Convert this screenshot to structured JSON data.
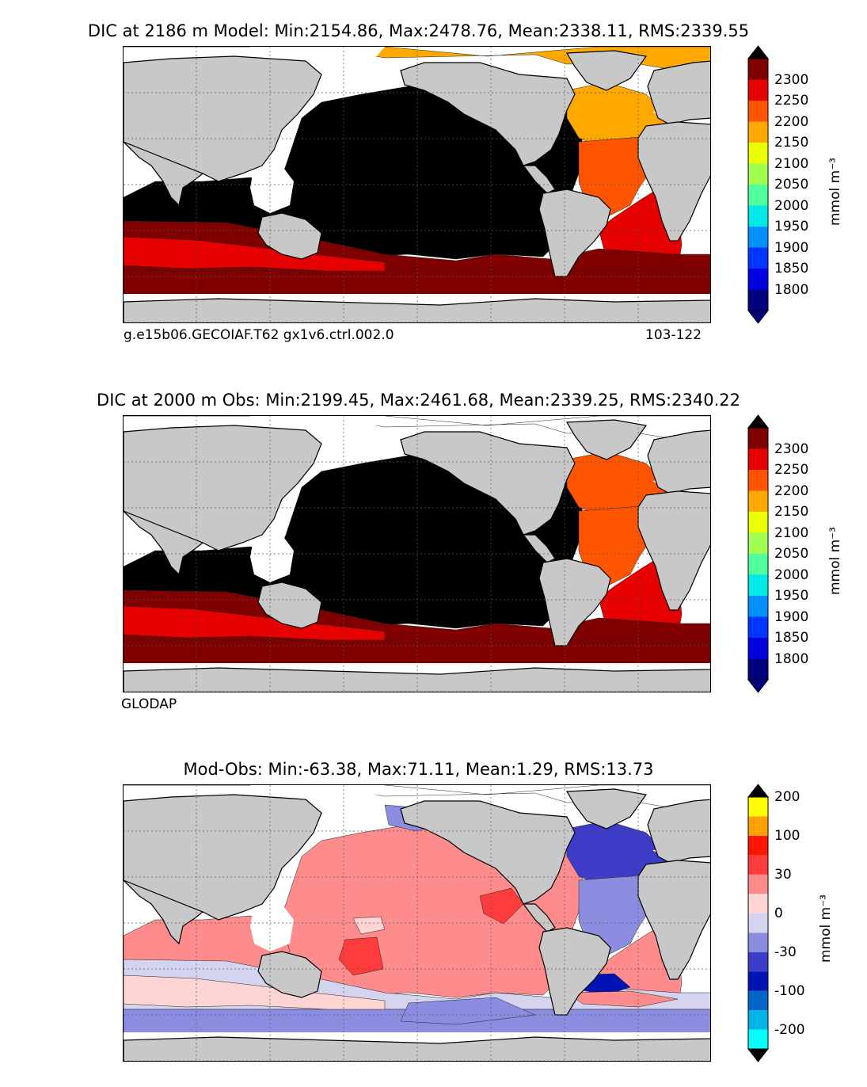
{
  "panels": [
    {
      "title": "DIC at 2186 m Model: Min:2154.86, Max:2478.76, Mean:2338.11, RMS:2339.55",
      "caption_left": "g.e15b06.GECOIAF.T62 gx1v6.ctrl.002.0",
      "caption_right": "103-122",
      "colorbar": {
        "unit": "mmol m⁻³",
        "labels": [
          "2300",
          "2250",
          "2200",
          "2150",
          "2100",
          "2050",
          "2000",
          "1950",
          "1900",
          "1850",
          "1800"
        ],
        "colors": [
          "#000080",
          "#0000e0",
          "#0036ff",
          "#0090ff",
          "#00e8e8",
          "#50ff9e",
          "#a0ff50",
          "#eaff00",
          "#ffa800",
          "#ff5500",
          "#e60000",
          "#800000"
        ],
        "over": "#000000",
        "under": "#000080"
      },
      "fields": {
        "pacific": "#000000",
        "indian_north": "#000000",
        "atlantic_north": "#ffa800",
        "atlantic_mid": "#ff5500",
        "south_band1": "#800000",
        "south_band2": "#e60000",
        "south_band3": "#800000",
        "atlantic_south": "#e60000",
        "arctic": "#ffa800"
      }
    },
    {
      "title": "DIC at 2000 m Obs: Min:2199.45, Max:2461.68, Mean:2339.25, RMS:2340.22",
      "caption_left": "GLODAP",
      "caption_right": "",
      "colorbar": {
        "unit": "mmol m⁻³",
        "labels": [
          "2300",
          "2250",
          "2200",
          "2150",
          "2100",
          "2050",
          "2000",
          "1950",
          "1900",
          "1850",
          "1800"
        ],
        "colors": [
          "#000080",
          "#0000e0",
          "#0036ff",
          "#0090ff",
          "#00e8e8",
          "#50ff9e",
          "#a0ff50",
          "#eaff00",
          "#ffa800",
          "#ff5500",
          "#e60000",
          "#800000"
        ],
        "over": "#000000",
        "under": "#000080"
      },
      "fields": {
        "pacific": "#000000",
        "indian_north": "#000000",
        "atlantic_north": "#ff5500",
        "atlantic_mid": "#ff5500",
        "south_band1": "#800000",
        "south_band2": "#e60000",
        "south_band3": "#800000",
        "atlantic_south": "#e60000",
        "arctic": "#ffffff"
      }
    },
    {
      "title": "Mod-Obs: Min:-63.38, Max:71.11, Mean:1.29, RMS:13.73",
      "caption_left": "",
      "caption_right": "",
      "colorbar": {
        "unit": "mmol m⁻³",
        "labels": [
          "200",
          "100",
          "30",
          "0",
          "-30",
          "-100",
          "-200"
        ],
        "colors": [
          "#00ffff",
          "#00b4e8",
          "#0064c8",
          "#0014b4",
          "#3c3cc8",
          "#8c8ce0",
          "#d4d4f0",
          "#ffd4d4",
          "#ff8c8c",
          "#ff3c3c",
          "#ff1400",
          "#ffa000",
          "#ffff00"
        ],
        "over": "#000000",
        "under": "#000000",
        "label_at": [
          12,
          10,
          8,
          6,
          4,
          2,
          0
        ]
      },
      "fields": {
        "pacific": "#ff8c8c",
        "indian_north": "#ff8c8c",
        "atlantic_north": "#3c3cc8",
        "atlantic_mid": "#8c8ce0",
        "south_band1": "#d4d4f0",
        "south_band2": "#ffd4d4",
        "south_band3": "#8c8ce0",
        "atlantic_south": "#ff8c8c",
        "arctic": "#ffffff"
      }
    }
  ],
  "colors": {
    "land": "#c8c8c8",
    "nodata": "#ffffff",
    "coast": "#000000",
    "grid": "#555555"
  }
}
